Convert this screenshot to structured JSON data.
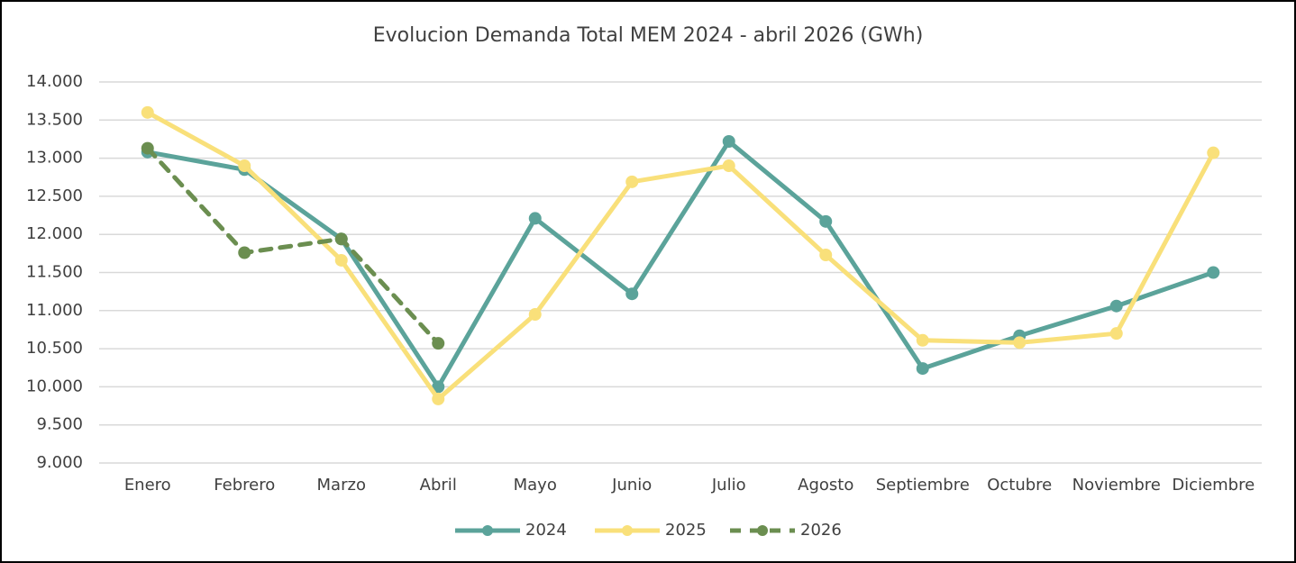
{
  "chart_data": {
    "type": "line",
    "title": "Evolucion Demanda Total MEM 2024 - abril 2026 (GWh)",
    "categories": [
      "Enero",
      "Febrero",
      "Marzo",
      "Abril",
      "Mayo",
      "Junio",
      "Julio",
      "Agosto",
      "Septiembre",
      "Octubre",
      "Noviembre",
      "Diciembre"
    ],
    "series": [
      {
        "name": "2024",
        "color": "#5ba39a",
        "dash": false,
        "values": [
          13080,
          12850,
          11940,
          10000,
          12210,
          11220,
          13220,
          12170,
          10240,
          10670,
          11060,
          11500
        ]
      },
      {
        "name": "2025",
        "color": "#f9e07a",
        "dash": false,
        "values": [
          13600,
          12900,
          11660,
          9840,
          10950,
          12690,
          12900,
          11730,
          10610,
          10580,
          10700,
          13070
        ]
      },
      {
        "name": "2026",
        "color": "#6b8e50",
        "dash": true,
        "values": [
          13130,
          11760,
          11940,
          10570,
          null,
          null,
          null,
          null,
          null,
          null,
          null,
          null
        ]
      }
    ],
    "ylim": [
      9000,
      14000
    ],
    "yticks": [
      {
        "value": 9000,
        "label": "9.000"
      },
      {
        "value": 9500,
        "label": "9.500"
      },
      {
        "value": 10000,
        "label": "10.000"
      },
      {
        "value": 10500,
        "label": "10.500"
      },
      {
        "value": 11000,
        "label": "11.000"
      },
      {
        "value": 11500,
        "label": "11.500"
      },
      {
        "value": 12000,
        "label": "12.000"
      },
      {
        "value": 12500,
        "label": "12.500"
      },
      {
        "value": 13000,
        "label": "13.000"
      },
      {
        "value": 13500,
        "label": "13.500"
      },
      {
        "value": 14000,
        "label": "14.000"
      }
    ],
    "grid": true,
    "legend": "bottom"
  }
}
